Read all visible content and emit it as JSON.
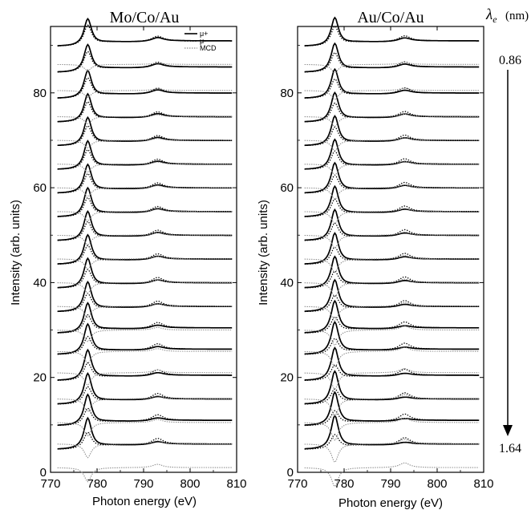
{
  "wavelength_axis": {
    "symbol": "λ",
    "subscript": "e",
    "unit": "(nm)",
    "top_value": "0.86",
    "bottom_value": "1.64"
  },
  "chart_data": [
    {
      "type": "line",
      "title": "Mo/Co/Au",
      "xlabel": "Photon energy (eV)",
      "ylabel": "Intensity (arb. units)",
      "xlim": [
        770,
        810
      ],
      "ylim": [
        0,
        94
      ],
      "xticks": [
        "770",
        "780",
        "790",
        "800",
        "810"
      ],
      "yticks": [
        "0",
        "20",
        "40",
        "60",
        "80"
      ],
      "legend": {
        "placement": "top-right",
        "entries": [
          {
            "label": "μ+",
            "style": "solid"
          },
          {
            "label": "μ-",
            "style": "dotted"
          },
          {
            "label": "MCD",
            "style": "gray-dotted"
          }
        ]
      },
      "baselines": [
        6,
        11,
        15.5,
        20.5,
        26,
        30.5,
        35,
        40,
        45,
        50,
        55,
        60,
        65,
        70,
        75,
        80,
        85.5,
        91
      ],
      "peak_L3_eV": 778,
      "peak_L2_eV": 793,
      "L3_height": 5,
      "L2_height": 1,
      "mcd_L3_dip": 3,
      "mcd_L2_bump": 0.7
    },
    {
      "type": "line",
      "title": "Au/Co/Au",
      "xlabel": "Photon energy (eV)",
      "ylabel": "Intensity (arb. units)",
      "xlim": [
        770,
        810
      ],
      "ylim": [
        0,
        94
      ],
      "xticks": [
        "770",
        "780",
        "790",
        "800",
        "810"
      ],
      "yticks": [
        "0",
        "20",
        "40",
        "60",
        "80"
      ],
      "baselines": [
        6,
        11,
        15.5,
        20.5,
        26,
        30.5,
        35,
        40,
        45,
        50,
        55,
        60,
        65,
        70,
        75,
        80,
        85.5,
        91
      ],
      "peak_L3_eV": 778,
      "peak_L2_eV": 793,
      "L3_height": 5,
      "L2_height": 1,
      "mcd_L3_dip": 4,
      "mcd_L2_bump": 1
    }
  ]
}
